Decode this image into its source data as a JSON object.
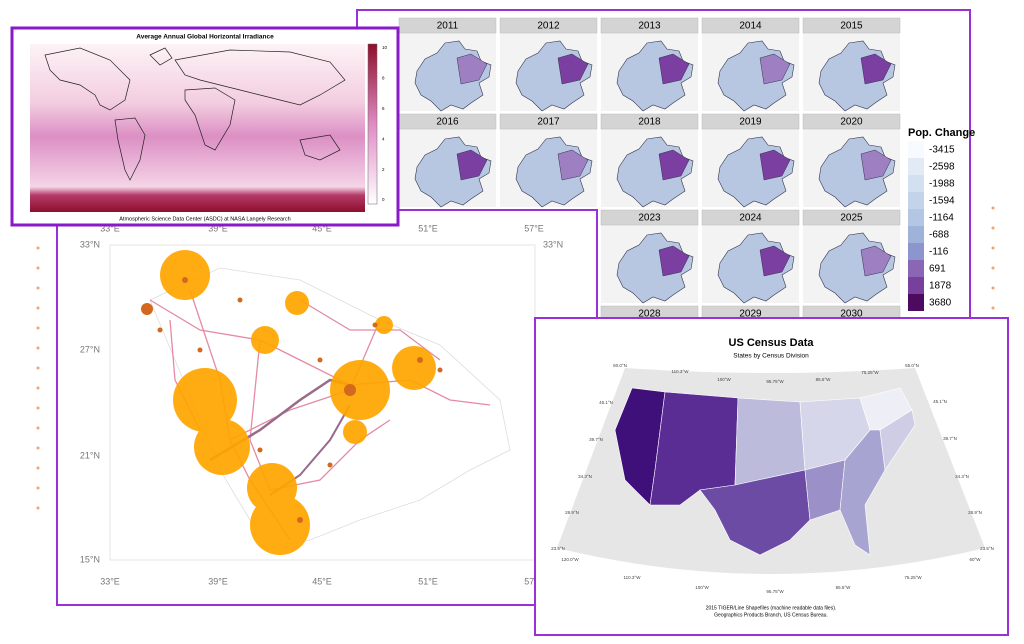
{
  "irradiance_map": {
    "title": "Average Annual Global Horizontal Irradiance",
    "source": "Atmospheric Science Data Center (ASDC) at NASA Langely Research",
    "colorbar_ticks": [
      10,
      8,
      6,
      4,
      2,
      0
    ]
  },
  "population_maps": {
    "years": [
      "2011",
      "2012",
      "2013",
      "2014",
      "2015",
      "2016",
      "2017",
      "2018",
      "2019",
      "2020",
      "2023",
      "2024",
      "2025",
      "2028",
      "2029",
      "2030"
    ],
    "legend": {
      "title": "Pop. Change",
      "values": [
        -3415,
        -2598,
        -1988,
        -1594,
        -1164,
        -688,
        -116,
        691,
        1878,
        3680
      ],
      "colors": [
        "#f7fbff",
        "#e2ebf5",
        "#d3e0ef",
        "#c3d4ea",
        "#b3c6e3",
        "#9fb2da",
        "#8c96cc",
        "#8a66b4",
        "#76409c",
        "#4d0b5f"
      ]
    }
  },
  "saudi_map": {
    "x_labels": [
      "33°E",
      "39°E",
      "45°E",
      "51°E",
      "57°E"
    ],
    "y_labels": [
      "33°N",
      "27°N",
      "21°N",
      "15°N"
    ]
  },
  "census_map": {
    "title": "US Census Data",
    "subtitle": "States by Census Division",
    "source": [
      "2015 TIGER/Line Shapefiles (machine readable data files).",
      "Geographics Products Branch, US Census Bureau."
    ],
    "top_labels": [
      "60.0°N",
      "110.3°W",
      "100°W",
      "95.75°W",
      "85.5°W",
      "75.25°W",
      "55.0°N"
    ],
    "left_labels": [
      "45.1°N",
      "39.7°N",
      "34.3°N",
      "28.9°N",
      "23.5°N"
    ],
    "right_labels": [
      "45.1°N",
      "39.7°N",
      "34.3°N",
      "28.9°N",
      "23.5°N"
    ],
    "bottom_labels": [
      "120.0°W",
      "110.3°W",
      "100°W",
      "95.75°W",
      "85.5°W",
      "75.25°W",
      "60°W"
    ]
  }
}
